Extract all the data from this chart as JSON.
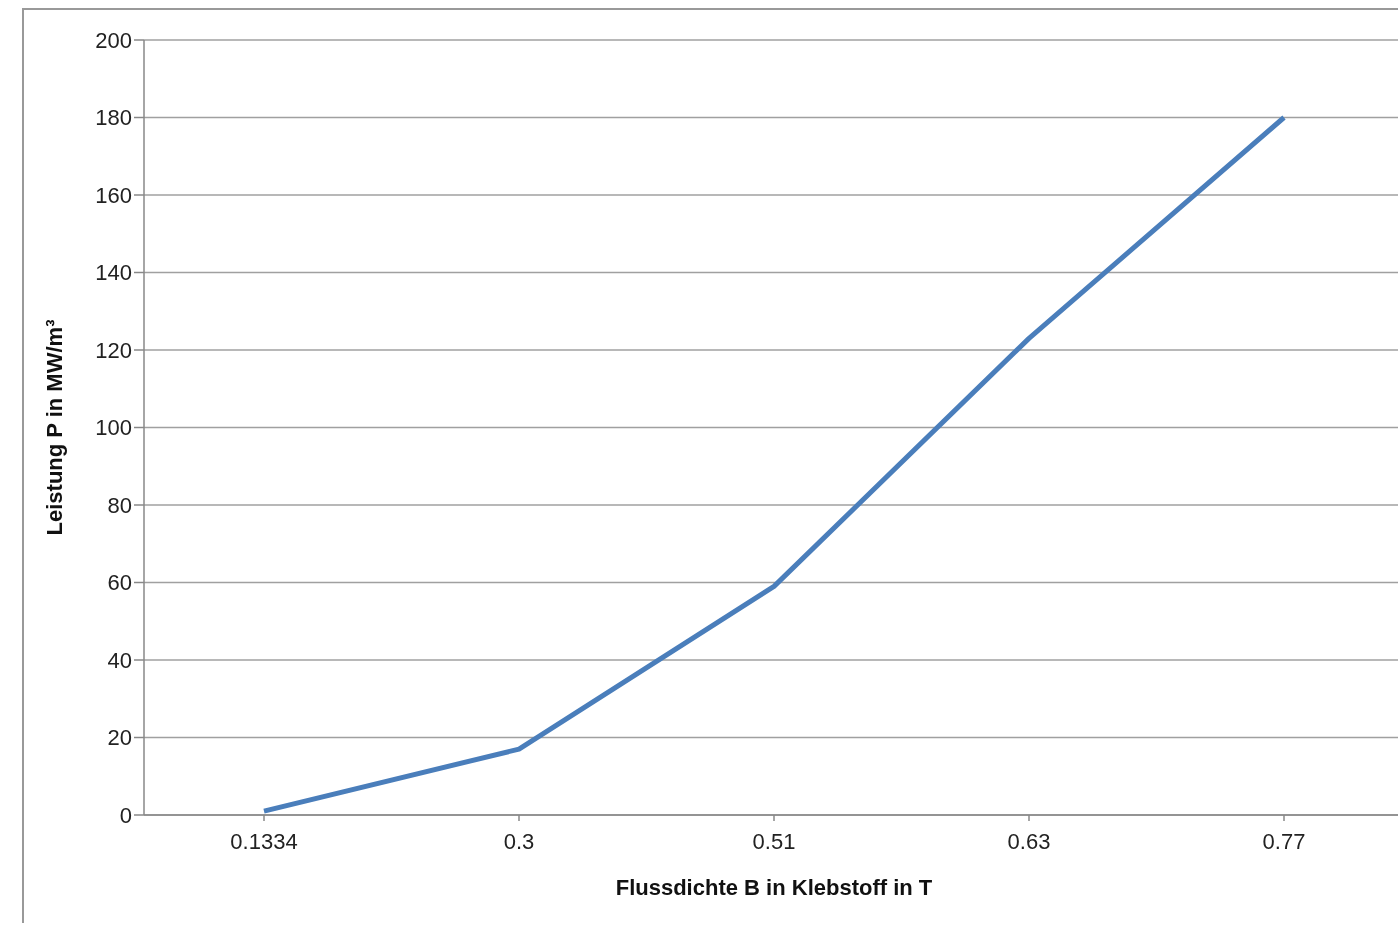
{
  "chart_data": {
    "type": "line",
    "xlabel": "Flussdichte B in Klebstoff in T",
    "ylabel": "Leistung P in MW/m³",
    "categories": [
      "0.1334",
      "0.3",
      "0.51",
      "0.63",
      "0.77"
    ],
    "series": [
      {
        "color": "#4a7ebb",
        "values": [
          1,
          17,
          59,
          123,
          180
        ]
      }
    ],
    "ylim": [
      0,
      200
    ],
    "yticks": [
      0,
      20,
      40,
      60,
      80,
      100,
      120,
      140,
      160,
      180,
      200
    ],
    "grid": "y",
    "marker": "none",
    "line_style": "solid"
  }
}
